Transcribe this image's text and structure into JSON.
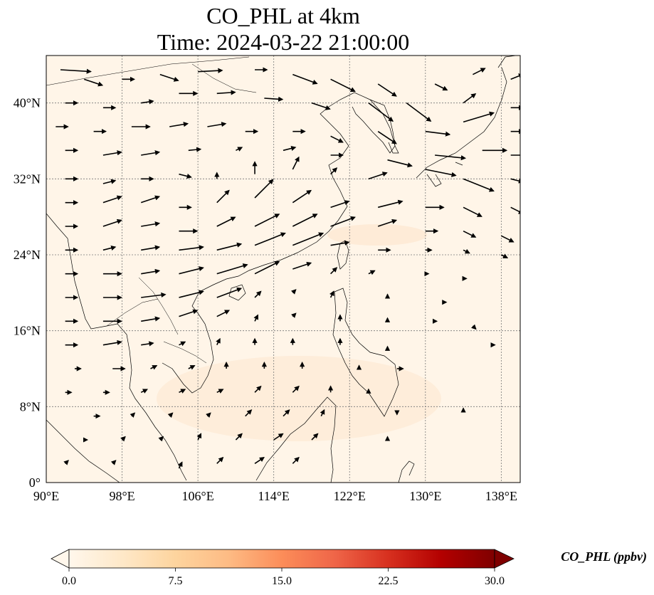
{
  "title": {
    "line1": "CO_PHL at 4km",
    "line2": "Time: 2024-03-22 21:00:00"
  },
  "map": {
    "lon_range": [
      90,
      140
    ],
    "lat_range": [
      0,
      45
    ],
    "lon_ticks": [
      "90°E",
      "98°E",
      "106°E",
      "114°E",
      "122°E",
      "130°E",
      "138°E"
    ],
    "lat_ticks": [
      "0°",
      "8°N",
      "16°N",
      "24°N",
      "32°N",
      "40°N"
    ],
    "gridlines": true,
    "background_color": "#fff5e8",
    "coastline_color": "#000000"
  },
  "colorbar": {
    "label": "CO_PHL (ppbv)",
    "ticks": [
      "0.0",
      "7.5",
      "15.0",
      "22.5",
      "30.0"
    ],
    "range": [
      0,
      30
    ],
    "colormap": "OrRd",
    "extend": "both",
    "colors": [
      "#fff7ec",
      "#fee8c8",
      "#fdd49e",
      "#fdbb84",
      "#fc8d59",
      "#ef6548",
      "#d7301f",
      "#b30000",
      "#7f0000"
    ]
  },
  "wind_vectors": [
    {
      "lon": 91.5,
      "lat": 43.5,
      "u": 5,
      "v": -0.3
    },
    {
      "lon": 94,
      "lat": 42.5,
      "u": 3,
      "v": -1
    },
    {
      "lon": 98,
      "lat": 42.5,
      "u": 2,
      "v": 0
    },
    {
      "lon": 102,
      "lat": 43,
      "u": 3,
      "v": -1
    },
    {
      "lon": 106,
      "lat": 43.3,
      "u": 4,
      "v": 0.2
    },
    {
      "lon": 112,
      "lat": 43.5,
      "u": 2,
      "v": 0
    },
    {
      "lon": 116,
      "lat": 43,
      "u": 4,
      "v": -1.5
    },
    {
      "lon": 120,
      "lat": 42.5,
      "u": 4,
      "v": -2
    },
    {
      "lon": 125,
      "lat": 42,
      "u": 3,
      "v": -2
    },
    {
      "lon": 131,
      "lat": 42,
      "u": 2,
      "v": -1
    },
    {
      "lon": 135,
      "lat": 43,
      "u": 2,
      "v": 1
    },
    {
      "lon": 139,
      "lat": 42.5,
      "u": 2,
      "v": 0.8
    },
    {
      "lon": 92,
      "lat": 40,
      "u": 2,
      "v": 0
    },
    {
      "lon": 96,
      "lat": 39.5,
      "u": 2,
      "v": 0
    },
    {
      "lon": 100,
      "lat": 40,
      "u": 2,
      "v": 0.3
    },
    {
      "lon": 104,
      "lat": 41,
      "u": 3,
      "v": 0
    },
    {
      "lon": 108,
      "lat": 41,
      "u": 3,
      "v": 0.2
    },
    {
      "lon": 113,
      "lat": 40.5,
      "u": 3,
      "v": -0.2
    },
    {
      "lon": 118,
      "lat": 40,
      "u": 3,
      "v": -1
    },
    {
      "lon": 124,
      "lat": 40,
      "u": 4,
      "v": -3
    },
    {
      "lon": 128,
      "lat": 40,
      "u": 4,
      "v": -3
    },
    {
      "lon": 134,
      "lat": 40,
      "u": 2,
      "v": 1.5
    },
    {
      "lon": 139,
      "lat": 39.5,
      "u": 2,
      "v": 0
    },
    {
      "lon": 91,
      "lat": 37.5,
      "u": 2,
      "v": 0
    },
    {
      "lon": 95,
      "lat": 37,
      "u": 2,
      "v": 0
    },
    {
      "lon": 99,
      "lat": 37.5,
      "u": 3,
      "v": 0
    },
    {
      "lon": 103,
      "lat": 37.5,
      "u": 3,
      "v": 0.5
    },
    {
      "lon": 107,
      "lat": 37.5,
      "u": 3,
      "v": 0.5
    },
    {
      "lon": 111,
      "lat": 37,
      "u": 2,
      "v": 0
    },
    {
      "lon": 116,
      "lat": 37,
      "u": 2,
      "v": 0
    },
    {
      "lon": 120,
      "lat": 36.5,
      "u": 2,
      "v": -1
    },
    {
      "lon": 125,
      "lat": 37,
      "u": 3,
      "v": -2
    },
    {
      "lon": 130,
      "lat": 37,
      "u": 4,
      "v": -0.5
    },
    {
      "lon": 134,
      "lat": 38,
      "u": 5,
      "v": 1.5
    },
    {
      "lon": 139,
      "lat": 37,
      "u": 2,
      "v": 0
    },
    {
      "lon": 92,
      "lat": 35,
      "u": 2,
      "v": 0
    },
    {
      "lon": 96,
      "lat": 34.5,
      "u": 3,
      "v": 0.5
    },
    {
      "lon": 100,
      "lat": 34.5,
      "u": 3,
      "v": 0.5
    },
    {
      "lon": 105,
      "lat": 35,
      "u": 2,
      "v": 0.2
    },
    {
      "lon": 110,
      "lat": 35,
      "u": 1,
      "v": 0.5
    },
    {
      "lon": 115,
      "lat": 35,
      "u": 2,
      "v": 0.5
    },
    {
      "lon": 120,
      "lat": 34.5,
      "u": 2,
      "v": 0
    },
    {
      "lon": 126,
      "lat": 34,
      "u": 4,
      "v": -1
    },
    {
      "lon": 131,
      "lat": 34.5,
      "u": 5,
      "v": -0.5
    },
    {
      "lon": 136,
      "lat": 35,
      "u": 4,
      "v": 0
    },
    {
      "lon": 139,
      "lat": 34.5,
      "u": 3,
      "v": 0
    },
    {
      "lon": 92,
      "lat": 32,
      "u": 2,
      "v": 0
    },
    {
      "lon": 96,
      "lat": 31.5,
      "u": 2,
      "v": 0.5
    },
    {
      "lon": 100,
      "lat": 32,
      "u": 2,
      "v": 0
    },
    {
      "lon": 104,
      "lat": 32.5,
      "u": 2,
      "v": -0.5
    },
    {
      "lon": 108,
      "lat": 32,
      "u": 0,
      "v": 1
    },
    {
      "lon": 112,
      "lat": 32.5,
      "u": 0,
      "v": 2
    },
    {
      "lon": 116,
      "lat": 33,
      "u": 1,
      "v": 2
    },
    {
      "lon": 120,
      "lat": 32.5,
      "u": 1,
      "v": 1
    },
    {
      "lon": 124,
      "lat": 32,
      "u": 3,
      "v": 1
    },
    {
      "lon": 130,
      "lat": 33,
      "u": 5,
      "v": -1
    },
    {
      "lon": 134,
      "lat": 32,
      "u": 5,
      "v": -2
    },
    {
      "lon": 139,
      "lat": 32,
      "u": 2,
      "v": -0.5
    },
    {
      "lon": 92,
      "lat": 29.5,
      "u": 2,
      "v": 0
    },
    {
      "lon": 96,
      "lat": 29.5,
      "u": 3,
      "v": 1
    },
    {
      "lon": 100,
      "lat": 29.5,
      "u": 3,
      "v": 1
    },
    {
      "lon": 104,
      "lat": 29,
      "u": 2,
      "v": 0
    },
    {
      "lon": 108,
      "lat": 29.5,
      "u": 2,
      "v": 2
    },
    {
      "lon": 112,
      "lat": 30,
      "u": 3,
      "v": 3
    },
    {
      "lon": 116,
      "lat": 29.5,
      "u": 3,
      "v": 2
    },
    {
      "lon": 120,
      "lat": 29,
      "u": 3,
      "v": 1
    },
    {
      "lon": 125,
      "lat": 29,
      "u": 4,
      "v": 1
    },
    {
      "lon": 130,
      "lat": 29,
      "u": 3,
      "v": 0
    },
    {
      "lon": 134,
      "lat": 29,
      "u": 3,
      "v": -1.5
    },
    {
      "lon": 139,
      "lat": 29,
      "u": 2,
      "v": -1
    },
    {
      "lon": 92,
      "lat": 27,
      "u": 2,
      "v": 0
    },
    {
      "lon": 96,
      "lat": 27,
      "u": 3,
      "v": 1
    },
    {
      "lon": 100,
      "lat": 27,
      "u": 3,
      "v": 0.5
    },
    {
      "lon": 104,
      "lat": 26.5,
      "u": 3,
      "v": 0
    },
    {
      "lon": 108,
      "lat": 27,
      "u": 3,
      "v": 1.5
    },
    {
      "lon": 112,
      "lat": 27,
      "u": 4,
      "v": 2
    },
    {
      "lon": 116,
      "lat": 27,
      "u": 4,
      "v": 2
    },
    {
      "lon": 120,
      "lat": 27,
      "u": 4,
      "v": 1.5
    },
    {
      "lon": 125,
      "lat": 27,
      "u": 3,
      "v": 1
    },
    {
      "lon": 130,
      "lat": 26.5,
      "u": 2,
      "v": 0
    },
    {
      "lon": 134,
      "lat": 26.5,
      "u": 2,
      "v": -1
    },
    {
      "lon": 138,
      "lat": 26,
      "u": 2,
      "v": -1
    },
    {
      "lon": 92,
      "lat": 24.5,
      "u": 2,
      "v": 0
    },
    {
      "lon": 96,
      "lat": 24.5,
      "u": 2,
      "v": 0.5
    },
    {
      "lon": 100,
      "lat": 24.5,
      "u": 3,
      "v": 0.5
    },
    {
      "lon": 104,
      "lat": 24.5,
      "u": 4,
      "v": 0.5
    },
    {
      "lon": 108,
      "lat": 24.5,
      "u": 4,
      "v": 1
    },
    {
      "lon": 112,
      "lat": 25,
      "u": 5,
      "v": 2
    },
    {
      "lon": 116,
      "lat": 25,
      "u": 5,
      "v": 2
    },
    {
      "lon": 120,
      "lat": 25,
      "u": 3,
      "v": 0.5
    },
    {
      "lon": 125,
      "lat": 24.5,
      "u": 2,
      "v": 0
    },
    {
      "lon": 130,
      "lat": 24.5,
      "u": 1,
      "v": 0
    },
    {
      "lon": 134,
      "lat": 24.5,
      "u": 1,
      "v": -0.5
    },
    {
      "lon": 138,
      "lat": 24,
      "u": 1,
      "v": -0.5
    },
    {
      "lon": 92,
      "lat": 22,
      "u": 2,
      "v": 0
    },
    {
      "lon": 96,
      "lat": 22,
      "u": 3,
      "v": 0
    },
    {
      "lon": 100,
      "lat": 22,
      "u": 3,
      "v": 0.5
    },
    {
      "lon": 104,
      "lat": 22,
      "u": 4,
      "v": 1
    },
    {
      "lon": 108,
      "lat": 22,
      "u": 5,
      "v": 1.5
    },
    {
      "lon": 112,
      "lat": 22,
      "u": 4,
      "v": 2
    },
    {
      "lon": 116,
      "lat": 22.5,
      "u": 3,
      "v": 1
    },
    {
      "lon": 120,
      "lat": 22,
      "u": 1,
      "v": 1
    },
    {
      "lon": 124,
      "lat": 22,
      "u": 1,
      "v": 0.5
    },
    {
      "lon": 130,
      "lat": 22,
      "u": 0.5,
      "v": 0
    },
    {
      "lon": 134,
      "lat": 21.5,
      "u": 0.5,
      "v": 0
    },
    {
      "lon": 92,
      "lat": 19.5,
      "u": 2,
      "v": 0
    },
    {
      "lon": 96,
      "lat": 19.5,
      "u": 3,
      "v": 0
    },
    {
      "lon": 100,
      "lat": 19.5,
      "u": 4,
      "v": 0.5
    },
    {
      "lon": 104,
      "lat": 19.5,
      "u": 4,
      "v": 1
    },
    {
      "lon": 108,
      "lat": 19.5,
      "u": 4,
      "v": 1.5
    },
    {
      "lon": 112,
      "lat": 19.5,
      "u": 1,
      "v": 1
    },
    {
      "lon": 116,
      "lat": 20,
      "u": 0.5,
      "v": 0.5
    },
    {
      "lon": 120,
      "lat": 19.5,
      "u": 0.5,
      "v": 1
    },
    {
      "lon": 126,
      "lat": 19.5,
      "u": 0,
      "v": 0.5
    },
    {
      "lon": 132,
      "lat": 19,
      "u": 0.3,
      "v": 0
    },
    {
      "lon": 92,
      "lat": 17,
      "u": 2,
      "v": 0
    },
    {
      "lon": 96,
      "lat": 17,
      "u": 3,
      "v": 0
    },
    {
      "lon": 100,
      "lat": 17,
      "u": 3,
      "v": 0.5
    },
    {
      "lon": 104,
      "lat": 17.5,
      "u": 3,
      "v": 1
    },
    {
      "lon": 108,
      "lat": 17.5,
      "u": 2,
      "v": 1
    },
    {
      "lon": 112,
      "lat": 17,
      "u": 0.5,
      "v": 1
    },
    {
      "lon": 116,
      "lat": 17.5,
      "u": 0.5,
      "v": 0.5
    },
    {
      "lon": 121,
      "lat": 17,
      "u": 0,
      "v": 1
    },
    {
      "lon": 126,
      "lat": 17,
      "u": 0,
      "v": 0.5
    },
    {
      "lon": 131,
      "lat": 17,
      "u": 0.3,
      "v": 0
    },
    {
      "lon": 135,
      "lat": 16.5,
      "u": 0.5,
      "v": -0.5
    },
    {
      "lon": 92,
      "lat": 14.5,
      "u": 2,
      "v": 0
    },
    {
      "lon": 96,
      "lat": 14.5,
      "u": 3,
      "v": 0.5
    },
    {
      "lon": 100,
      "lat": 14.5,
      "u": 2,
      "v": 0.3
    },
    {
      "lon": 104,
      "lat": 14.5,
      "u": 1,
      "v": 0.5
    },
    {
      "lon": 108,
      "lat": 14.5,
      "u": 0.5,
      "v": 1
    },
    {
      "lon": 112,
      "lat": 14.5,
      "u": 0,
      "v": 1
    },
    {
      "lon": 116,
      "lat": 14.5,
      "u": 0,
      "v": 1
    },
    {
      "lon": 121,
      "lat": 14.5,
      "u": 0,
      "v": 1
    },
    {
      "lon": 126,
      "lat": 14,
      "u": 0,
      "v": 0.5
    },
    {
      "lon": 137,
      "lat": 14.5,
      "u": 0.5,
      "v": 0
    },
    {
      "lon": 93,
      "lat": 12,
      "u": 1,
      "v": 0
    },
    {
      "lon": 97,
      "lat": 12,
      "u": 2,
      "v": 0
    },
    {
      "lon": 101,
      "lat": 12,
      "u": 1,
      "v": 0.5
    },
    {
      "lon": 105,
      "lat": 12,
      "u": 1,
      "v": 0.5
    },
    {
      "lon": 109,
      "lat": 12,
      "u": 0,
      "v": 1
    },
    {
      "lon": 113,
      "lat": 12,
      "u": 0,
      "v": 1
    },
    {
      "lon": 117,
      "lat": 12,
      "u": 0,
      "v": 1
    },
    {
      "lon": 123,
      "lat": 12,
      "u": 0,
      "v": 0.5
    },
    {
      "lon": 127,
      "lat": 12,
      "u": 1,
      "v": 0
    },
    {
      "lon": 92,
      "lat": 9.5,
      "u": 1,
      "v": 0
    },
    {
      "lon": 96,
      "lat": 9.5,
      "u": 1,
      "v": 0
    },
    {
      "lon": 100,
      "lat": 9.5,
      "u": 1,
      "v": 0.5
    },
    {
      "lon": 104,
      "lat": 9.5,
      "u": 1,
      "v": 0.5
    },
    {
      "lon": 108,
      "lat": 9.5,
      "u": 1,
      "v": 0.5
    },
    {
      "lon": 112,
      "lat": 9.5,
      "u": 1,
      "v": 1
    },
    {
      "lon": 116,
      "lat": 9.5,
      "u": 1,
      "v": 1
    },
    {
      "lon": 120,
      "lat": 9.5,
      "u": 0,
      "v": 1
    },
    {
      "lon": 124,
      "lat": 9.5,
      "u": 0,
      "v": 0.5
    },
    {
      "lon": 95,
      "lat": 7,
      "u": 1,
      "v": 0
    },
    {
      "lon": 99,
      "lat": 7,
      "u": 0.5,
      "v": 0.5
    },
    {
      "lon": 103,
      "lat": 7,
      "u": 0.5,
      "v": 0.5
    },
    {
      "lon": 107,
      "lat": 7,
      "u": 0.5,
      "v": 0.5
    },
    {
      "lon": 111,
      "lat": 7,
      "u": 1,
      "v": 1
    },
    {
      "lon": 115,
      "lat": 7,
      "u": 1,
      "v": 1
    },
    {
      "lon": 119,
      "lat": 7,
      "u": 0.5,
      "v": 1
    },
    {
      "lon": 127,
      "lat": 7.5,
      "u": 0,
      "v": -0.5
    },
    {
      "lon": 134,
      "lat": 7.5,
      "u": 0,
      "v": 0.5
    },
    {
      "lon": 94,
      "lat": 4.5,
      "u": 0.5,
      "v": 0
    },
    {
      "lon": 98,
      "lat": 4.5,
      "u": 0.5,
      "v": 0.5
    },
    {
      "lon": 102,
      "lat": 4.5,
      "u": 0.5,
      "v": 0.5
    },
    {
      "lon": 106,
      "lat": 4.5,
      "u": 0.5,
      "v": 1
    },
    {
      "lon": 110,
      "lat": 4.5,
      "u": 1,
      "v": 1
    },
    {
      "lon": 114,
      "lat": 4.5,
      "u": 1.5,
      "v": 1
    },
    {
      "lon": 118,
      "lat": 4.5,
      "u": 1,
      "v": 1
    },
    {
      "lon": 126,
      "lat": 4.5,
      "u": 0,
      "v": 0.5
    },
    {
      "lon": 92,
      "lat": 2,
      "u": 0.5,
      "v": 0.5
    },
    {
      "lon": 97,
      "lat": 2,
      "u": 0.5,
      "v": 0.5
    },
    {
      "lon": 104,
      "lat": 1.5,
      "u": 0.5,
      "v": 1
    },
    {
      "lon": 108,
      "lat": 2,
      "u": 1,
      "v": 1
    },
    {
      "lon": 112,
      "lat": 2,
      "u": 1.5,
      "v": 1
    },
    {
      "lon": 116,
      "lat": 2,
      "u": 1,
      "v": 1
    }
  ]
}
